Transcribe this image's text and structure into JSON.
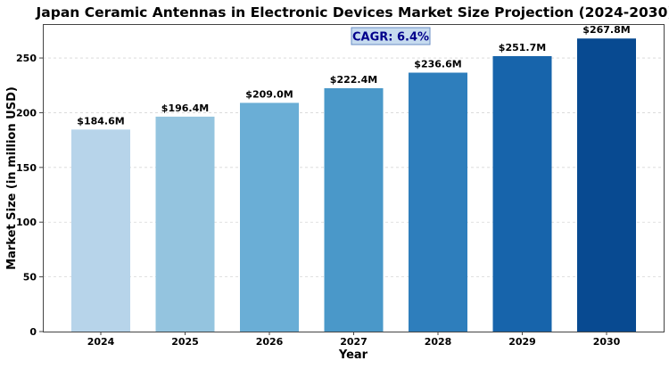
{
  "chart_data": {
    "type": "bar",
    "title": "Japan Ceramic Antennas in Electronic Devices Market Size Projection (2024-2030)",
    "xlabel": "Year",
    "ylabel": "Market Size (in million USD)",
    "categories": [
      "2024",
      "2025",
      "2026",
      "2027",
      "2028",
      "2029",
      "2030"
    ],
    "values": [
      184.6,
      196.4,
      209.0,
      222.4,
      236.6,
      251.7,
      267.8
    ],
    "value_labels": [
      "$184.6M",
      "$196.4M",
      "$209.0M",
      "$222.4M",
      "$236.6M",
      "$251.7M",
      "$267.8M"
    ],
    "ylim": [
      0,
      281
    ],
    "yticks": [
      0,
      50,
      100,
      150,
      200,
      250
    ],
    "grid": true,
    "bar_colors": [
      "#b7d4ea",
      "#94c4df",
      "#6aaed6",
      "#4a98c9",
      "#2e7ebc",
      "#1764ab",
      "#084a91"
    ],
    "annotation": {
      "text": "CAGR: 6.4%",
      "text_color": "#00008b",
      "box_fill": "#c6dbef",
      "box_stroke": "#6a8ec6"
    }
  }
}
